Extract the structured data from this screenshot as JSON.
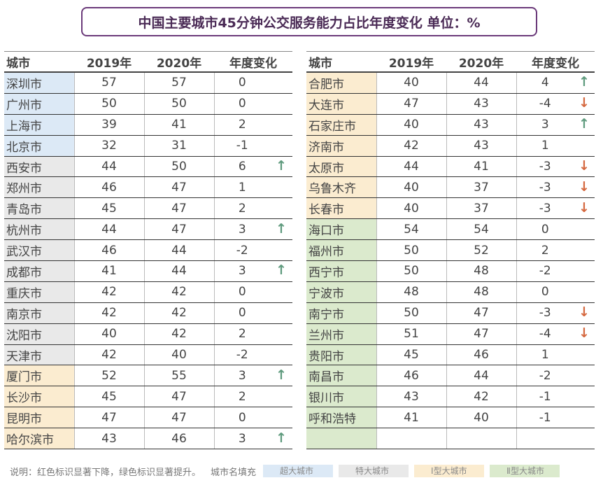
{
  "title": "中国主要城市45分钟公交服务能力占比年度变化  单位：%",
  "headers": {
    "city": "城市",
    "y2019": "2019年",
    "y2020": "2020年",
    "change": "年度变化"
  },
  "colors": {
    "super": "#dce9f6",
    "mega": "#e9e9e9",
    "t1": "#fbecd0",
    "t2": "#dbeacd",
    "up": "#5e9a7d",
    "down": "#d5683f",
    "title_border": "#6b3a7a"
  },
  "left_rows": [
    {
      "city": "深圳市",
      "y2019": "57",
      "y2020": "57",
      "change": "0",
      "trend": "",
      "cat": "super"
    },
    {
      "city": "广州市",
      "y2019": "50",
      "y2020": "50",
      "change": "0",
      "trend": "",
      "cat": "super"
    },
    {
      "city": "上海市",
      "y2019": "39",
      "y2020": "41",
      "change": "2",
      "trend": "",
      "cat": "super"
    },
    {
      "city": "北京市",
      "y2019": "32",
      "y2020": "31",
      "change": "-1",
      "trend": "",
      "cat": "super"
    },
    {
      "city": "西安市",
      "y2019": "44",
      "y2020": "50",
      "change": "6",
      "trend": "up",
      "cat": "mega"
    },
    {
      "city": "郑州市",
      "y2019": "46",
      "y2020": "47",
      "change": "1",
      "trend": "",
      "cat": "mega"
    },
    {
      "city": "青岛市",
      "y2019": "45",
      "y2020": "47",
      "change": "2",
      "trend": "",
      "cat": "mega"
    },
    {
      "city": "杭州市",
      "y2019": "44",
      "y2020": "47",
      "change": "3",
      "trend": "up",
      "cat": "mega"
    },
    {
      "city": "武汉市",
      "y2019": "46",
      "y2020": "44",
      "change": "-2",
      "trend": "",
      "cat": "mega"
    },
    {
      "city": "成都市",
      "y2019": "41",
      "y2020": "44",
      "change": "3",
      "trend": "up",
      "cat": "mega"
    },
    {
      "city": "重庆市",
      "y2019": "42",
      "y2020": "42",
      "change": "0",
      "trend": "",
      "cat": "mega"
    },
    {
      "city": "南京市",
      "y2019": "42",
      "y2020": "42",
      "change": "0",
      "trend": "",
      "cat": "mega"
    },
    {
      "city": "沈阳市",
      "y2019": "40",
      "y2020": "42",
      "change": "2",
      "trend": "",
      "cat": "mega"
    },
    {
      "city": "天津市",
      "y2019": "42",
      "y2020": "40",
      "change": "-2",
      "trend": "",
      "cat": "mega"
    },
    {
      "city": "厦门市",
      "y2019": "52",
      "y2020": "55",
      "change": "3",
      "trend": "up",
      "cat": "t1"
    },
    {
      "city": "长沙市",
      "y2019": "45",
      "y2020": "47",
      "change": "2",
      "trend": "",
      "cat": "t1"
    },
    {
      "city": "昆明市",
      "y2019": "47",
      "y2020": "47",
      "change": "0",
      "trend": "",
      "cat": "t1"
    },
    {
      "city": "哈尔滨市",
      "y2019": "43",
      "y2020": "46",
      "change": "3",
      "trend": "up",
      "cat": "t1"
    }
  ],
  "right_rows": [
    {
      "city": "合肥市",
      "y2019": "40",
      "y2020": "44",
      "change": "4",
      "trend": "up",
      "cat": "t1"
    },
    {
      "city": "大连市",
      "y2019": "47",
      "y2020": "43",
      "change": "-4",
      "trend": "down",
      "cat": "t1"
    },
    {
      "city": "石家庄市",
      "y2019": "40",
      "y2020": "43",
      "change": "3",
      "trend": "up",
      "cat": "t1"
    },
    {
      "city": "济南市",
      "y2019": "42",
      "y2020": "43",
      "change": "1",
      "trend": "",
      "cat": "t1"
    },
    {
      "city": "太原市",
      "y2019": "44",
      "y2020": "41",
      "change": "-3",
      "trend": "down",
      "cat": "t1"
    },
    {
      "city": "乌鲁木齐",
      "y2019": "40",
      "y2020": "37",
      "change": "-3",
      "trend": "down",
      "cat": "t1"
    },
    {
      "city": "长春市",
      "y2019": "40",
      "y2020": "37",
      "change": "-3",
      "trend": "down",
      "cat": "t1"
    },
    {
      "city": "海口市",
      "y2019": "54",
      "y2020": "54",
      "change": "0",
      "trend": "",
      "cat": "t2"
    },
    {
      "city": "福州市",
      "y2019": "50",
      "y2020": "52",
      "change": "2",
      "trend": "",
      "cat": "t2"
    },
    {
      "city": "西宁市",
      "y2019": "50",
      "y2020": "48",
      "change": "-2",
      "trend": "",
      "cat": "t2"
    },
    {
      "city": "宁波市",
      "y2019": "48",
      "y2020": "48",
      "change": "0",
      "trend": "",
      "cat": "t2"
    },
    {
      "city": "南宁市",
      "y2019": "50",
      "y2020": "47",
      "change": "-3",
      "trend": "down",
      "cat": "t2"
    },
    {
      "city": "兰州市",
      "y2019": "51",
      "y2020": "47",
      "change": "-4",
      "trend": "down",
      "cat": "t2"
    },
    {
      "city": "贵阳市",
      "y2019": "45",
      "y2020": "46",
      "change": "1",
      "trend": "",
      "cat": "t2"
    },
    {
      "city": "南昌市",
      "y2019": "46",
      "y2020": "44",
      "change": "-2",
      "trend": "",
      "cat": "t2"
    },
    {
      "city": "银川市",
      "y2019": "43",
      "y2020": "42",
      "change": "-1",
      "trend": "",
      "cat": "t2"
    },
    {
      "city": "呼和浩特",
      "y2019": "41",
      "y2020": "40",
      "change": "-1",
      "trend": "",
      "cat": "t2"
    },
    {
      "city": "",
      "y2019": "",
      "y2020": "",
      "change": "",
      "trend": "",
      "cat": "t2"
    }
  ],
  "legend": {
    "note": "说明：红色标识显著下降，绿色标识显著提升。",
    "fill_label": "城市名填充",
    "items": [
      {
        "label": "超大城市",
        "cat": "super"
      },
      {
        "label": "特大城市",
        "cat": "mega"
      },
      {
        "label": "Ⅰ型大城市",
        "cat": "t1"
      },
      {
        "label": "Ⅱ型大城市",
        "cat": "t2"
      }
    ]
  }
}
